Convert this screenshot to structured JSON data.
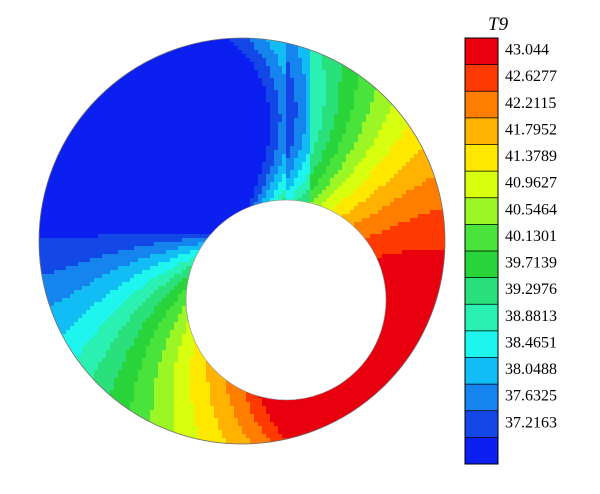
{
  "chart_data": {
    "type": "heatmap",
    "title": "",
    "variable": "T9",
    "colorbar": {
      "title": "T9",
      "levels": [
        43.044,
        42.6277,
        42.2115,
        41.7952,
        41.3789,
        40.9627,
        40.5464,
        40.1301,
        39.7139,
        39.2976,
        38.8813,
        38.4651,
        38.0488,
        37.6325,
        37.2163
      ],
      "colors": [
        "#e8000f",
        "#ff3a00",
        "#ff7e00",
        "#ffb300",
        "#ffe800",
        "#d7ff0f",
        "#9cf525",
        "#49e33c",
        "#29d43a",
        "#2ae07a",
        "#2af0b2",
        "#1ef5ee",
        "#12bdf5",
        "#1584ee",
        "#1448e6",
        "#0b1ff0"
      ],
      "range": [
        37.2163,
        43.044
      ]
    },
    "field": {
      "shape": "annulus",
      "min_value": 37.2163,
      "max_value": 43.044,
      "hot_region": "lower-right of annulus",
      "cold_region": "upper-left of annulus"
    }
  }
}
